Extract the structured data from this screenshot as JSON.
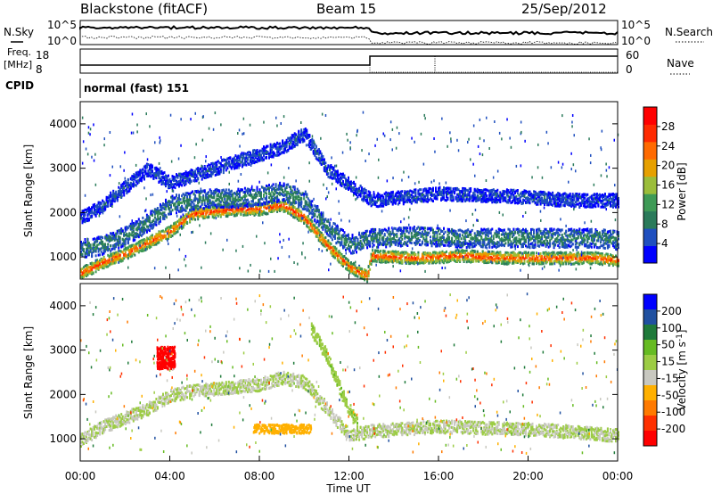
{
  "header": {
    "station": "Blackstone (fitACF)",
    "beam": "Beam 15",
    "date": "25/Sep/2012"
  },
  "noise_panel": {
    "left_label": "N.Sky",
    "right_label": "N.Search",
    "left_ticks": [
      "10^5",
      "10^0"
    ],
    "right_ticks": [
      "10^5",
      "10^0"
    ]
  },
  "freq_panel": {
    "left_label_line1": "Freq.",
    "left_label_line2": "[MHz]",
    "left_ticks": [
      "18",
      "8"
    ],
    "right_ticks": [
      "60",
      "0"
    ],
    "right_label": "Nave"
  },
  "cpid": {
    "label": "CPID",
    "mode": "normal (fast) 151"
  },
  "colors": {
    "power_scale": [
      "#0000ff",
      "#1f4fbf",
      "#2a7a5a",
      "#3e9a56",
      "#9bbd3a",
      "#e6a000",
      "#ff6a00",
      "#ff2a00",
      "#ff0000"
    ],
    "velocity_scale": [
      "#0000ff",
      "#2050a0",
      "#1f7a3a",
      "#66bb22",
      "#9ccc44",
      "#c8c8c0",
      "#ffb000",
      "#ff7a00",
      "#ff3000",
      "#ff0000"
    ]
  },
  "chart_data": [
    {
      "type": "heatmap",
      "panel": "power",
      "title": "",
      "xlabel": "",
      "ylabel": "Slant Range [km]",
      "ylim": [
        500,
        4500
      ],
      "x_unit": "hours UT",
      "yticks": [
        "4000",
        "3000",
        "2000",
        "1000"
      ],
      "ytick_values": [
        4000,
        3000,
        2000,
        1000
      ],
      "colorbar": {
        "label": "Power [dB]",
        "ticks": [
          "28",
          "24",
          "20",
          "16",
          "12",
          "8",
          "4"
        ],
        "tick_values": [
          28,
          24,
          20,
          16,
          12,
          8,
          4
        ],
        "range": [
          0,
          32
        ]
      },
      "bands": [
        {
          "desc": "main",
          "points": [
            [
              0,
              650
            ],
            [
              1,
              900
            ],
            [
              2,
              1100
            ],
            [
              3,
              1350
            ],
            [
              4,
              1600
            ],
            [
              5,
              2000
            ],
            [
              6,
              2050
            ],
            [
              7,
              2100
            ],
            [
              8,
              2100
            ],
            [
              9,
              2200
            ],
            [
              10,
              1900
            ],
            [
              11,
              1300
            ],
            [
              12,
              800
            ],
            [
              12.8,
              600
            ],
            [
              13,
              1050
            ],
            [
              15,
              1000
            ],
            [
              17,
              1050
            ],
            [
              19,
              1000
            ],
            [
              21,
              1000
            ],
            [
              23,
              1000
            ],
            [
              24,
              950
            ]
          ],
          "width": 220,
          "value": 24
        },
        {
          "desc": "upper",
          "points": [
            [
              0,
              1200
            ],
            [
              1,
              1300
            ],
            [
              2,
              1500
            ],
            [
              3,
              1800
            ],
            [
              4,
              2200
            ],
            [
              5,
              2300
            ],
            [
              6,
              2350
            ],
            [
              7,
              2350
            ],
            [
              8,
              2400
            ],
            [
              9,
              2500
            ],
            [
              10,
              2300
            ],
            [
              11,
              1700
            ],
            [
              12,
              1300
            ],
            [
              13,
              1450
            ],
            [
              15,
              1500
            ],
            [
              17,
              1450
            ],
            [
              19,
              1450
            ],
            [
              21,
              1450
            ],
            [
              23,
              1450
            ],
            [
              24,
              1400
            ]
          ],
          "width": 350,
          "value": 9
        },
        {
          "desc": "far",
          "points": [
            [
              0,
              1900
            ],
            [
              1,
              2200
            ],
            [
              2,
              2600
            ],
            [
              3,
              3000
            ],
            [
              4,
              2700
            ],
            [
              9,
              3500
            ],
            [
              10,
              3800
            ],
            [
              11,
              3000
            ],
            [
              13,
              2300
            ],
            [
              16,
              2450
            ],
            [
              19,
              2400
            ],
            [
              22,
              2300
            ],
            [
              24,
              2300
            ]
          ],
          "width": 250,
          "value": 5
        }
      ]
    },
    {
      "type": "heatmap",
      "panel": "velocity",
      "title": "",
      "xlabel": "Time UT",
      "ylabel": "Slant Range [km]",
      "ylim": [
        500,
        4500
      ],
      "x_unit": "hours UT",
      "yticks": [
        "4000",
        "3000",
        "2000",
        "1000"
      ],
      "ytick_values": [
        4000,
        3000,
        2000,
        1000
      ],
      "xticks": [
        "00:00",
        "04:00",
        "08:00",
        "12:00",
        "16:00",
        "20:00",
        "00:00"
      ],
      "xtick_values": [
        0,
        4,
        8,
        12,
        16,
        20,
        24
      ],
      "colorbar": {
        "label": "Velocity [m s^-1]",
        "ticks": [
          "200",
          "100",
          "50",
          "15",
          "-15",
          "-50",
          "-100",
          "-200"
        ],
        "tick_values": [
          200,
          100,
          50,
          15,
          -15,
          -50,
          -100,
          -200
        ],
        "range": [
          -250,
          250
        ]
      },
      "bands": [
        {
          "desc": "gray ground",
          "points": [
            [
              0,
              1000
            ],
            [
              1,
              1300
            ],
            [
              2,
              1500
            ],
            [
              3,
              1700
            ],
            [
              4,
              2000
            ],
            [
              5,
              2100
            ],
            [
              7,
              2200
            ],
            [
              8,
              2250
            ],
            [
              9,
              2400
            ],
            [
              10,
              2300
            ],
            [
              11,
              1700
            ],
            [
              12,
              1100
            ],
            [
              13,
              1200
            ],
            [
              16,
              1300
            ],
            [
              20,
              1250
            ],
            [
              24,
              1100
            ]
          ],
          "width": 240,
          "value": 0
        },
        {
          "desc": "red blob",
          "center": [
            3.8,
            2850
          ],
          "size": [
            0.8,
            500
          ],
          "value": -220
        },
        {
          "desc": "orange lower",
          "center": [
            9.0,
            1250
          ],
          "size": [
            2.6,
            200
          ],
          "value": -70
        },
        {
          "desc": "green descending",
          "points": [
            [
              10.3,
              3500
            ],
            [
              11,
              2900
            ],
            [
              11.7,
              2000
            ],
            [
              12.4,
              1300
            ]
          ],
          "width": 250,
          "value": 40
        }
      ]
    }
  ]
}
